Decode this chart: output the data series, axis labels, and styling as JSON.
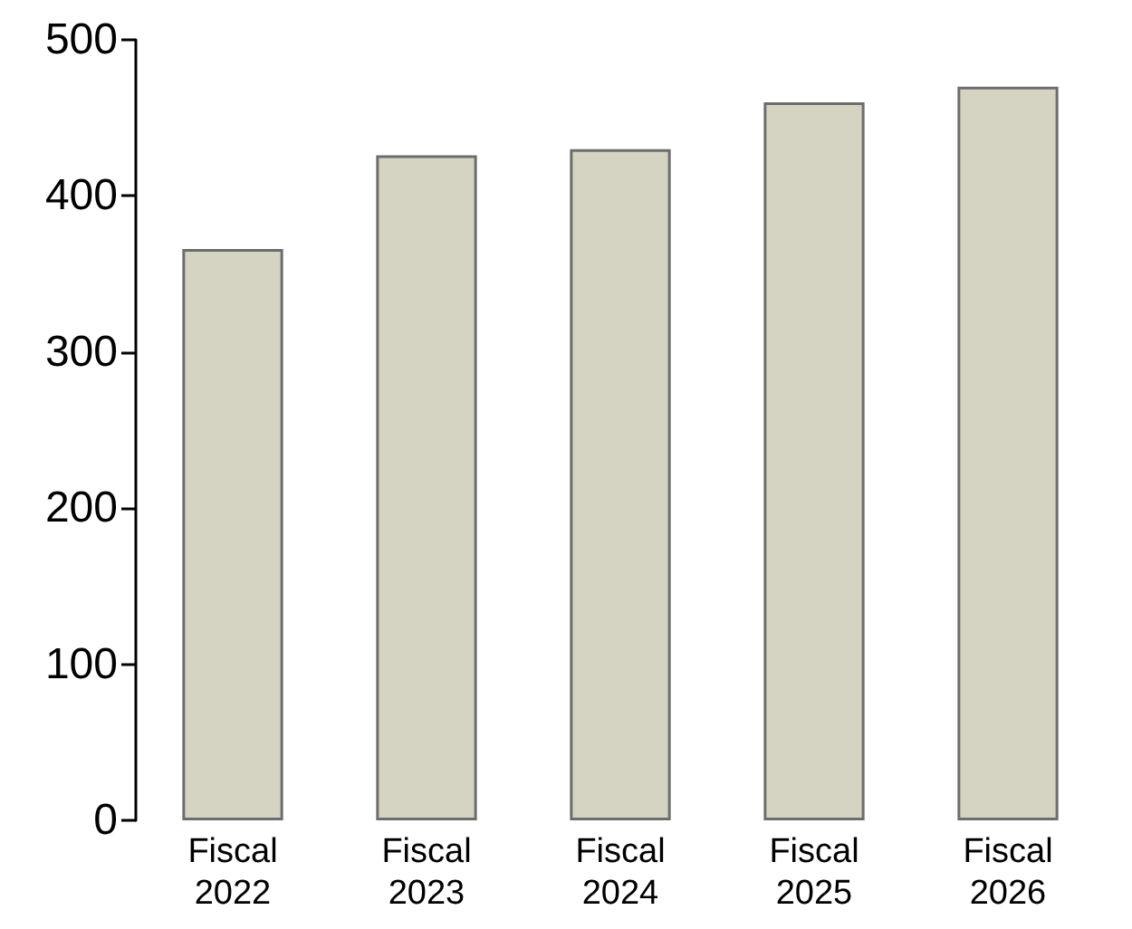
{
  "chart_data": {
    "type": "bar",
    "categories": [
      "Fiscal 2022",
      "Fiscal 2023",
      "Fiscal 2024",
      "Fiscal 2025",
      "Fiscal 2026"
    ],
    "values": [
      366,
      426,
      430,
      460,
      470
    ],
    "color": "#d5d3c1",
    "ylim": [
      0,
      500
    ],
    "yticks": [
      0,
      100,
      200,
      300,
      400,
      500
    ],
    "grid": false
  }
}
